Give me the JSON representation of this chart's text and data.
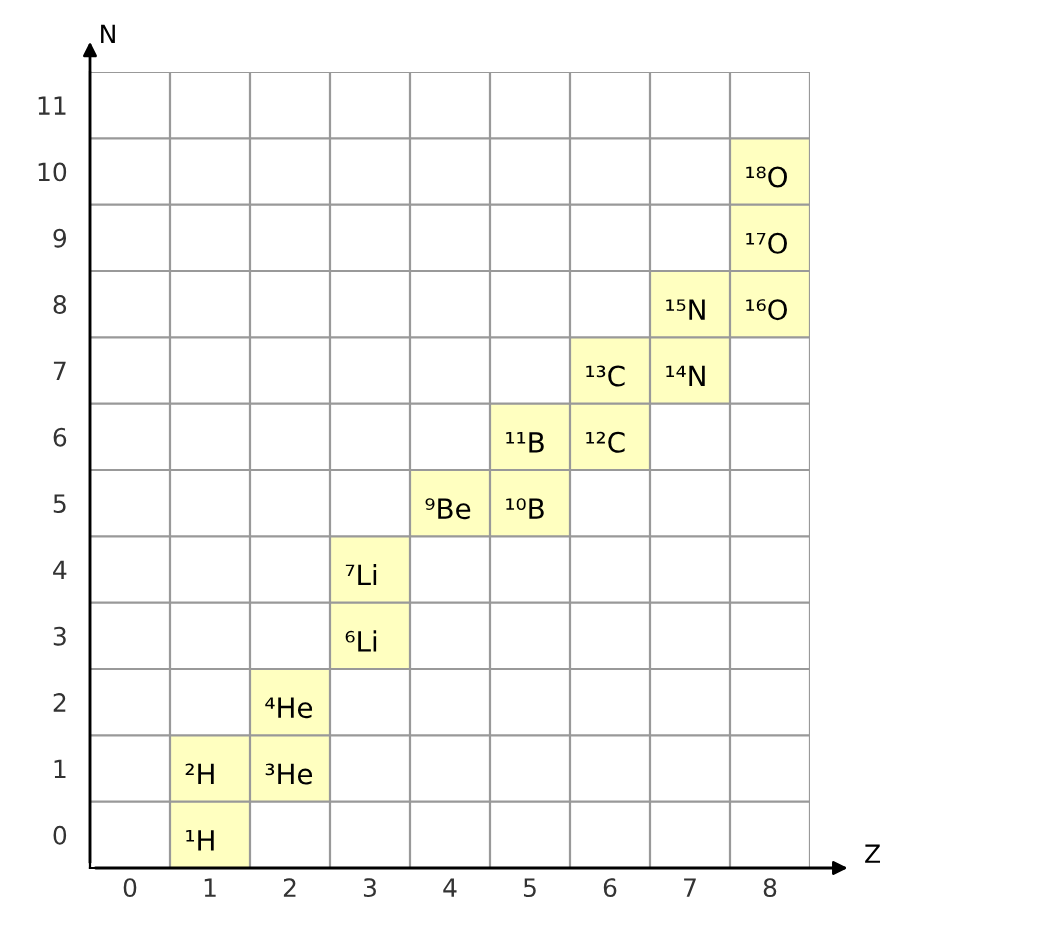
{
  "chart_data": {
    "type": "scatter",
    "xlabel": "Z",
    "ylabel": "N",
    "grid": true,
    "marker": "square",
    "xlim": [
      -0.5,
      8.5
    ],
    "ylim": [
      -0.5,
      11.5
    ],
    "xticks": [
      0,
      1,
      2,
      3,
      4,
      5,
      6,
      7,
      8
    ],
    "yticks": [
      0,
      1,
      2,
      3,
      4,
      5,
      6,
      7,
      8,
      9,
      10,
      11
    ],
    "series": [
      {
        "color": "#ffffc0",
        "x": [
          1,
          1,
          2,
          2,
          3,
          3,
          4,
          5,
          5,
          6,
          6,
          7,
          7,
          8,
          8,
          8
        ],
        "values": [
          0,
          1,
          1,
          2,
          3,
          4,
          5,
          5,
          6,
          6,
          7,
          7,
          8,
          8,
          9,
          10
        ],
        "value_labels": [
          "¹H",
          "²H",
          "³He",
          "⁴He",
          "⁶Li",
          "⁷Li",
          "⁹Be",
          "¹⁰B",
          "¹¹B",
          "¹²C",
          "¹³C",
          "¹⁴N",
          "¹⁵N",
          "¹⁶O",
          "¹⁷O",
          "¹⁸O"
        ]
      }
    ]
  }
}
